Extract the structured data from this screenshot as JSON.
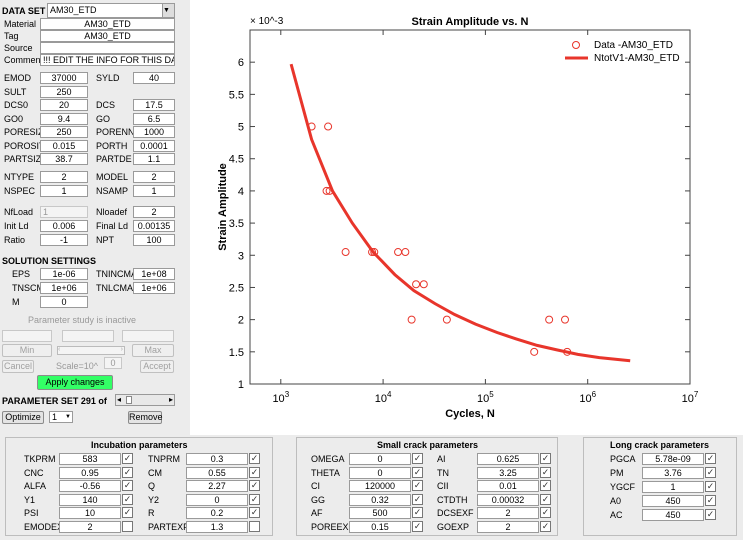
{
  "left_panel": {
    "data_set_label": "DATA SET",
    "data_set_value": "AM30_ETD",
    "fields": [
      {
        "label": "Material",
        "value": "AM30_ETD"
      },
      {
        "label": "Tag",
        "value": "AM30_ETD"
      },
      {
        "label": "Source",
        "value": ""
      },
      {
        "label": "Comment",
        "value": "!!! EDIT THE INFO FOR THIS DAT"
      }
    ],
    "params_a": [
      {
        "l1": "EMOD",
        "v1": "37000",
        "l2": "SYLD",
        "v2": "40"
      },
      {
        "l1": "SULT",
        "v1": "250",
        "l2": "",
        "v2": ""
      },
      {
        "l1": "DCS0",
        "v1": "20",
        "l2": "DCS",
        "v2": "17.5"
      },
      {
        "l1": "GO0",
        "v1": "9.4",
        "l2": "GO",
        "v2": "6.5"
      },
      {
        "l1": "PORESIZ",
        "v1": "250",
        "l2": "PORENN",
        "v2": "1000"
      },
      {
        "l1": "POROSIT",
        "v1": "0.015",
        "l2": "PORTH",
        "v2": "0.0001"
      },
      {
        "l1": "PARTSIZ",
        "v1": "38.7",
        "l2": "PARTDE",
        "v2": "1.1"
      }
    ],
    "params_b": [
      {
        "l1": "NTYPE",
        "v1": "2",
        "l2": "MODEL",
        "v2": "2"
      },
      {
        "l1": "NSPEC",
        "v1": "1",
        "l2": "NSAMP",
        "v2": "1"
      }
    ],
    "params_c": [
      {
        "l1": "NfLoad",
        "v1": "1",
        "l2": "Nloadef",
        "v2": "2"
      },
      {
        "l1": "Init Ld",
        "v1": "0.006",
        "l2": "Final Ld",
        "v2": "0.00135"
      },
      {
        "l1": "Ratio",
        "v1": "-1",
        "l2": "NPT",
        "v2": "100"
      }
    ],
    "solution_title": "SOLUTION SETTINGS",
    "solution": [
      {
        "l1": "EPS",
        "v1": "1e-06",
        "l2": "TNINCMA",
        "v2": "1e+08"
      },
      {
        "l1": "TNSCMA",
        "v1": "1e+06",
        "l2": "TNLCMA",
        "v2": "1e+06"
      },
      {
        "l1": "M",
        "v1": "0",
        "l2": "",
        "v2": ""
      }
    ],
    "param_study_text": "Parameter study is inactive",
    "min_label": "Min",
    "max_label": "Max",
    "scale_label": "Scale=10^",
    "scale_value": "0",
    "cancel_label": "Cancel",
    "accept_label": "Accept",
    "apply_label": "Apply changes",
    "param_set_text": "PARAMETER SET 291 of",
    "optimize_label": "Optimize",
    "optimize_value": "1",
    "remove_label": "Remove"
  },
  "chart_data": {
    "type": "scatter",
    "title": "Strain Amplitude vs. N",
    "xlabel": "Cycles, N",
    "ylabel": "Strain Amplitude",
    "x_scale": "log",
    "xlim": [
      500,
      10000000
    ],
    "ylim": [
      1,
      6.5
    ],
    "y_multiplier": "× 10^-3",
    "x_ticks": [
      "10^3",
      "10^4",
      "10^5",
      "10^6",
      "10^7"
    ],
    "y_ticks": [
      "1",
      "1.5",
      "2",
      "2.5",
      "3",
      "3.5",
      "4",
      "4.5",
      "5",
      "5.5",
      "6"
    ],
    "legend_position": "top-right",
    "series": [
      {
        "name": "Data -AM30_ETD",
        "kind": "markers",
        "color": "#e8352b",
        "points": [
          [
            2000,
            5.0
          ],
          [
            2900,
            5.0
          ],
          [
            2800,
            4.0
          ],
          [
            3000,
            4.0
          ],
          [
            4300,
            3.05
          ],
          [
            7800,
            3.05
          ],
          [
            8200,
            3.05
          ],
          [
            14000,
            3.05
          ],
          [
            16500,
            3.05
          ],
          [
            19000,
            2.0
          ],
          [
            21000,
            2.55
          ],
          [
            25000,
            2.55
          ],
          [
            42000,
            2.0
          ],
          [
            300000,
            1.5
          ],
          [
            420000,
            2.0
          ],
          [
            600000,
            2.0
          ],
          [
            630000,
            1.5
          ]
        ]
      },
      {
        "name": "NtotV1-AM30_ETD",
        "kind": "line",
        "color": "#e8352b",
        "points": [
          [
            1260,
            5.97
          ],
          [
            2000,
            4.8
          ],
          [
            3200,
            4.0
          ],
          [
            5000,
            3.5
          ],
          [
            8000,
            3.05
          ],
          [
            13000,
            2.7
          ],
          [
            20000,
            2.45
          ],
          [
            32000,
            2.25
          ],
          [
            50000,
            2.08
          ],
          [
            80000,
            1.93
          ],
          [
            130000,
            1.8
          ],
          [
            200000,
            1.7
          ],
          [
            320000,
            1.6
          ],
          [
            500000,
            1.53
          ],
          [
            800000,
            1.46
          ],
          [
            1300000,
            1.41
          ],
          [
            2600000,
            1.36
          ]
        ]
      }
    ]
  },
  "incubation": {
    "title": "Incubation parameters",
    "rows": [
      {
        "l1": "TKPRM",
        "v1": "583",
        "l2": "TNPRM",
        "v2": "0.3"
      },
      {
        "l1": "CNC",
        "v1": "0.95",
        "l2": "CM",
        "v2": "0.55"
      },
      {
        "l1": "ALFA",
        "v1": "-0.56",
        "l2": "Q",
        "v2": "2.27"
      },
      {
        "l1": "Y1",
        "v1": "140",
        "l2": "Y2",
        "v2": "0"
      },
      {
        "l1": "PSI",
        "v1": "10",
        "l2": "R",
        "v2": "0.2"
      },
      {
        "l1": "EMODEX",
        "v1": "2",
        "l2": "PARTEXF",
        "v2": "1.3"
      }
    ],
    "checks": [
      [
        true,
        true
      ],
      [
        true,
        true
      ],
      [
        true,
        true
      ],
      [
        true,
        true
      ],
      [
        true,
        true
      ],
      [
        false,
        false
      ]
    ]
  },
  "small_crack": {
    "title": "Small crack parameters",
    "rows": [
      {
        "l1": "OMEGA",
        "v1": "0",
        "l2": "AI",
        "v2": "0.625"
      },
      {
        "l1": "THETA",
        "v1": "0",
        "l2": "TN",
        "v2": "3.25"
      },
      {
        "l1": "CI",
        "v1": "120000",
        "l2": "CII",
        "v2": "0.01"
      },
      {
        "l1": "GG",
        "v1": "0.32",
        "l2": "CTDTH",
        "v2": "0.00032"
      },
      {
        "l1": "AF",
        "v1": "500",
        "l2": "DCSEXF",
        "v2": "2"
      },
      {
        "l1": "POREEX",
        "v1": "0.15",
        "l2": "GOEXP",
        "v2": "2"
      }
    ]
  },
  "long_crack": {
    "title": "Long crack parameters",
    "rows": [
      {
        "l": "PGCA",
        "v": "5.78e-09"
      },
      {
        "l": "PM",
        "v": "3.76"
      },
      {
        "l": "YGCF",
        "v": "1"
      },
      {
        "l": "A0",
        "v": "450"
      },
      {
        "l": "AC",
        "v": "450"
      }
    ]
  },
  "colors": {
    "accent_green": "#33ff66",
    "curve_red": "#e8352b"
  }
}
